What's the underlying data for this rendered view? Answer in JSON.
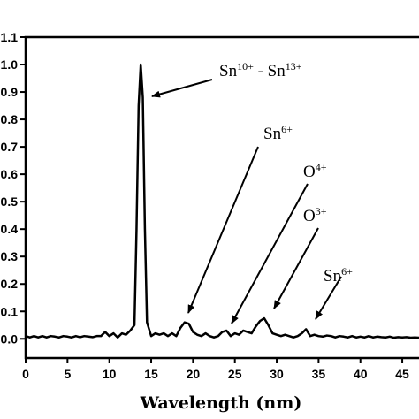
{
  "chart_data": {
    "type": "line",
    "x_label": "Wavelength (nm)",
    "x": [
      0,
      0.5,
      1,
      1.5,
      2,
      2.5,
      3,
      3.5,
      4,
      4.5,
      5,
      5.5,
      6,
      6.5,
      7,
      7.5,
      8,
      8.5,
      9,
      9.5,
      10,
      10.5,
      11,
      11.5,
      12,
      12.5,
      13,
      13.25,
      13.5,
      13.75,
      14,
      14.25,
      14.5,
      15,
      15.5,
      16,
      16.5,
      17,
      17.5,
      18,
      18.5,
      19,
      19.5,
      20,
      20.5,
      21,
      21.5,
      22,
      22.5,
      23,
      23.5,
      24,
      24.5,
      25,
      25.5,
      26,
      26.5,
      27,
      27.5,
      28,
      28.5,
      29,
      29.5,
      30,
      30.5,
      31,
      31.5,
      32,
      32.5,
      33,
      33.5,
      34,
      34.5,
      35,
      35.5,
      36,
      36.5,
      37,
      37.5,
      38,
      38.5,
      39,
      39.5,
      40,
      40.5,
      41,
      41.5,
      42,
      42.5,
      43,
      43.5,
      44,
      44.5,
      45,
      45.5,
      46,
      46.5,
      47
    ],
    "series": [
      {
        "color": "#000000",
        "values": [
          0.01,
          0.005,
          0.01,
          0.005,
          0.01,
          0.005,
          0.01,
          0.008,
          0.005,
          0.01,
          0.008,
          0.005,
          0.01,
          0.006,
          0.01,
          0.008,
          0.006,
          0.01,
          0.01,
          0.025,
          0.01,
          0.02,
          0.005,
          0.02,
          0.015,
          0.03,
          0.05,
          0.4,
          0.85,
          1.0,
          0.88,
          0.4,
          0.06,
          0.01,
          0.02,
          0.015,
          0.02,
          0.01,
          0.02,
          0.01,
          0.04,
          0.06,
          0.055,
          0.025,
          0.015,
          0.01,
          0.02,
          0.01,
          0.005,
          0.01,
          0.025,
          0.03,
          0.01,
          0.02,
          0.015,
          0.03,
          0.025,
          0.02,
          0.045,
          0.065,
          0.075,
          0.05,
          0.02,
          0.015,
          0.01,
          0.015,
          0.01,
          0.005,
          0.01,
          0.02,
          0.035,
          0.01,
          0.015,
          0.01,
          0.008,
          0.012,
          0.01,
          0.005,
          0.01,
          0.008,
          0.005,
          0.01,
          0.005,
          0.008,
          0.005,
          0.01,
          0.005,
          0.008,
          0.006,
          0.005,
          0.008,
          0.004,
          0.006,
          0.005,
          0.006,
          0.004,
          0.005,
          0.004
        ]
      }
    ],
    "xlim": [
      0,
      47
    ],
    "xticks": [
      0,
      5,
      10,
      15,
      20,
      25,
      30,
      35,
      40,
      45
    ],
    "ylim": [
      -0.07,
      1.1
    ],
    "yticks": [
      {
        "value": 0,
        "label": "0.0"
      },
      0.1,
      0.2,
      0.3,
      0.4,
      0.5,
      0.6,
      0.7,
      0.8,
      0.9,
      {
        "value": 1,
        "label": "1.0"
      },
      1.1
    ],
    "annotations": [
      {
        "parts": [
          "Sn",
          "10+",
          " - Sn",
          "13+"
        ]
      },
      {
        "parts": [
          "Sn",
          "6+"
        ]
      },
      {
        "parts": [
          "O",
          "4+"
        ]
      },
      {
        "parts": [
          "O",
          "3+"
        ]
      },
      {
        "parts": [
          "Sn",
          "6+"
        ]
      }
    ]
  }
}
